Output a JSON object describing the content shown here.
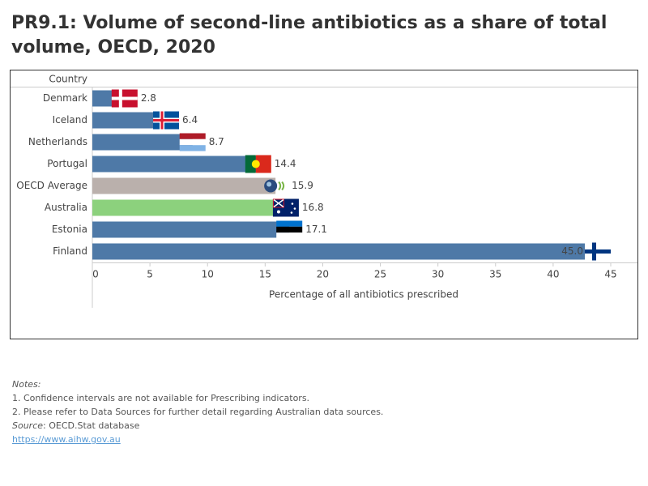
{
  "chart_data": {
    "type": "bar",
    "orientation": "horizontal",
    "title": "PR9.1: Volume of second-line antibiotics as a share of total volume, OECD, 2020",
    "y_label": "Country",
    "x_label": "Percentage of all antibiotics prescribed",
    "categories": [
      "Denmark",
      "Iceland",
      "Netherlands",
      "Portugal",
      "OECD Average",
      "Australia",
      "Estonia",
      "Finland"
    ],
    "values": [
      2.8,
      6.4,
      8.7,
      14.4,
      15.9,
      16.8,
      17.1,
      45.0
    ],
    "value_labels": [
      "2.8",
      "6.4",
      "8.7",
      "14.4",
      "15.9",
      "16.8",
      "17.1",
      "45.0"
    ],
    "colors": [
      "#4e79a7",
      "#4e79a7",
      "#4e79a7",
      "#4e79a7",
      "#bab0ac",
      "#8cd17d",
      "#4e79a7",
      "#4e79a7"
    ],
    "xlim": [
      0,
      45
    ],
    "xticks": [
      0,
      5,
      10,
      15,
      20,
      25,
      30,
      35,
      40,
      45
    ]
  },
  "notes": {
    "heading": "Notes:",
    "lines": [
      "1. Confidence intervals are not available for Prescribing indicators.",
      "2. Please refer to Data Sources for further detail regarding Australian data sources."
    ],
    "source_label": "Source",
    "source_text": ": OECD.Stat database",
    "link": "https://www.aihw.gov.au"
  }
}
